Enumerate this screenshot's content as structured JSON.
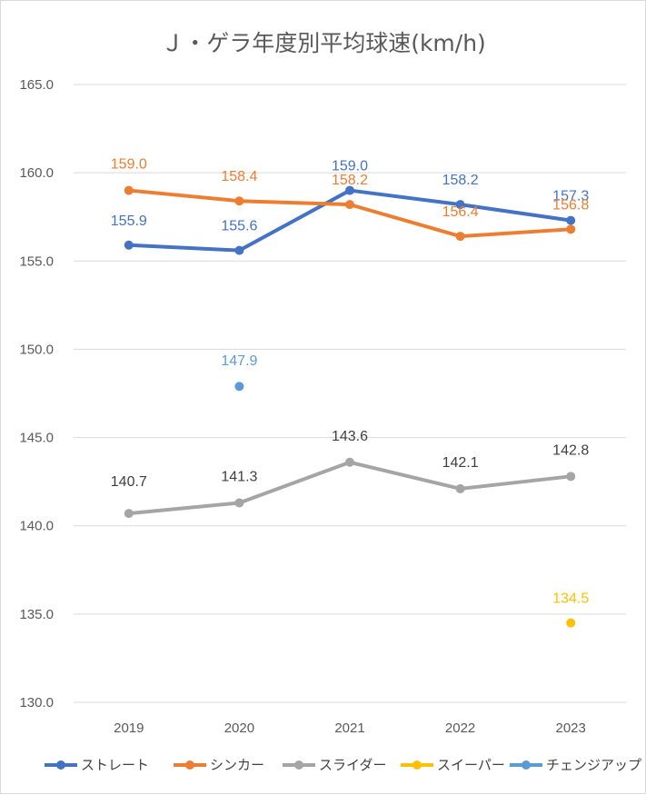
{
  "chart_data": {
    "type": "line",
    "title": "Ｊ・ゲラ年度別平均球速(km/h)",
    "categories": [
      "2019",
      "2020",
      "2021",
      "2022",
      "2023"
    ],
    "ylim": [
      130.0,
      165.0
    ],
    "yticks": [
      "130.0",
      "135.0",
      "140.0",
      "145.0",
      "150.0",
      "155.0",
      "160.0",
      "165.0"
    ],
    "grid": true,
    "legend_position": "bottom",
    "series": [
      {
        "name": "ストレート",
        "color": "#4472c4",
        "values": [
          155.9,
          155.6,
          159.0,
          158.2,
          157.3
        ],
        "labels": [
          "155.9",
          "155.6",
          "159.0",
          "158.2",
          "157.3"
        ]
      },
      {
        "name": "シンカー",
        "color": "#ed7d31",
        "values": [
          159.0,
          158.4,
          158.2,
          156.4,
          156.8
        ],
        "labels": [
          "159.0",
          "158.4",
          "158.2",
          "156.4",
          "156.8"
        ]
      },
      {
        "name": "スライダー",
        "color": "#a5a5a5",
        "values": [
          140.7,
          141.3,
          143.6,
          142.1,
          142.8
        ],
        "labels": [
          "140.7",
          "141.3",
          "143.6",
          "142.1",
          "142.8"
        ]
      },
      {
        "name": "スイーパー",
        "color": "#ffc000",
        "values": [
          null,
          null,
          null,
          null,
          134.5
        ],
        "labels": [
          null,
          null,
          null,
          null,
          "134.5"
        ]
      },
      {
        "name": "チェンジアップ",
        "color": "#5b9bd5",
        "values": [
          null,
          147.9,
          null,
          null,
          null
        ],
        "labels": [
          null,
          "147.9",
          null,
          null,
          null
        ]
      }
    ]
  }
}
